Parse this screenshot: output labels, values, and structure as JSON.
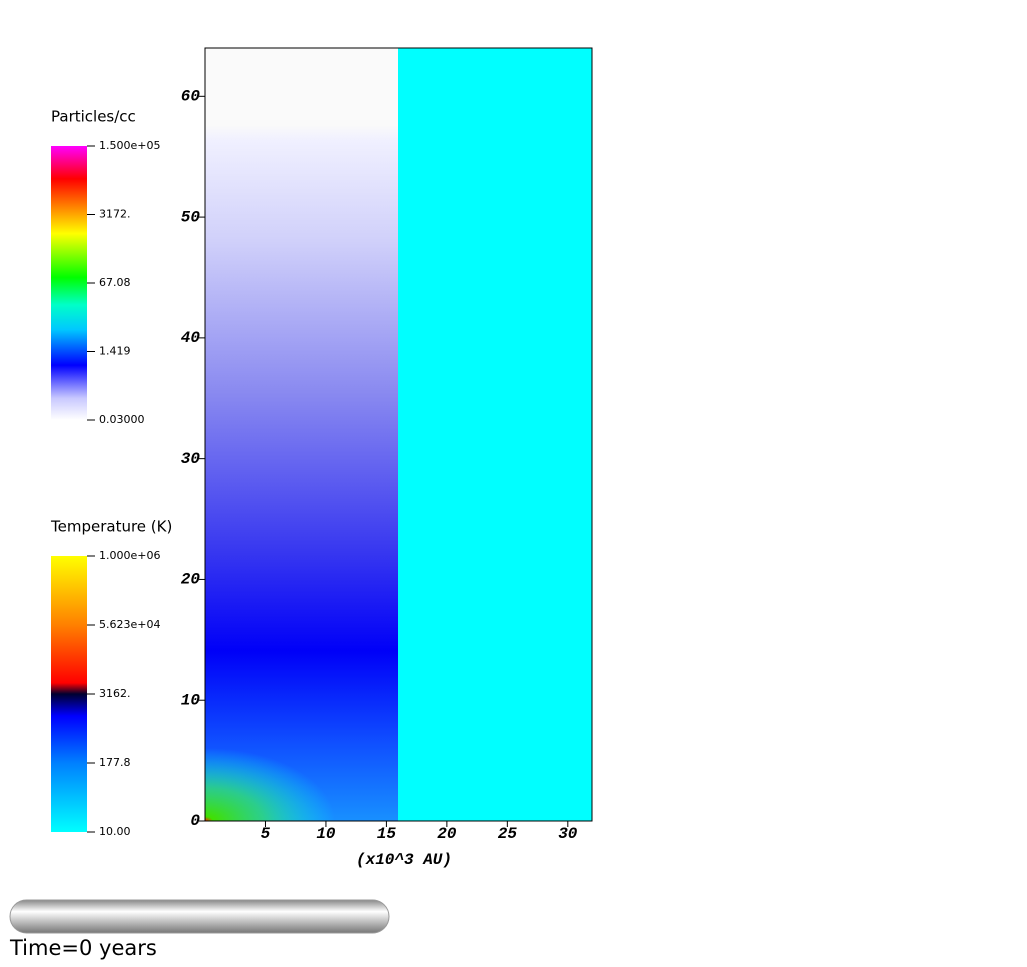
{
  "chart_data": {
    "type": "heatmap",
    "xlabel": "(x10^3 AU)",
    "xlim": [
      0,
      32
    ],
    "ylim": [
      0,
      64
    ],
    "xticks": [
      5,
      10,
      15,
      20,
      25,
      30
    ],
    "yticks": [
      0,
      10,
      20,
      30,
      40,
      50,
      60
    ],
    "colorbars": [
      {
        "title": "Particles/cc",
        "scale": "log",
        "lim": [
          0.03,
          150000
        ],
        "ticks": [
          {
            "value": 0.03,
            "label": "0.03000"
          },
          1.419,
          67.08,
          {
            "value": 3172,
            "label": "3172."
          },
          {
            "value": 150000,
            "label": "1.500e+05"
          }
        ]
      },
      {
        "title": "Temperature (K)",
        "scale": "log",
        "lim": [
          10,
          1000000
        ],
        "ticks": [
          {
            "value": 10,
            "label": "10.00"
          },
          177.8,
          {
            "value": 3162,
            "label": "3162."
          },
          {
            "value": 56230,
            "label": "5.623e+04"
          },
          {
            "value": 1000000,
            "label": "1.000e+06"
          }
        ]
      }
    ],
    "time_label": "Time=0 years"
  }
}
